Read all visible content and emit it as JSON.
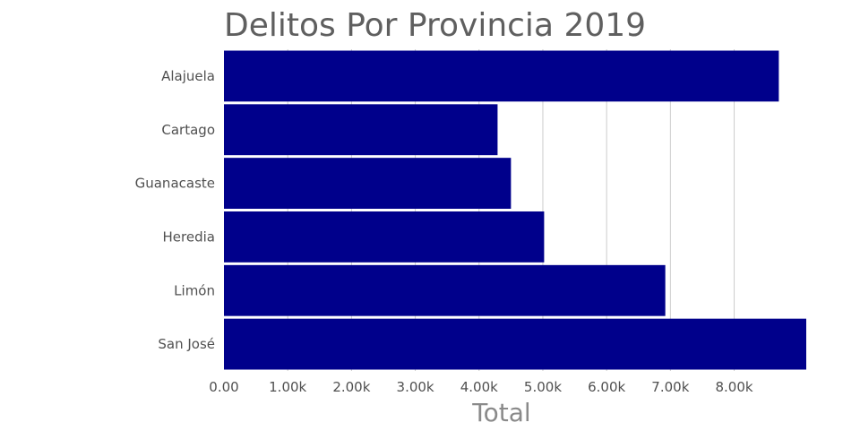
{
  "chart_data": {
    "type": "bar",
    "orientation": "horizontal",
    "title": "Delitos Por Provincia 2019",
    "xlabel": "Total",
    "ylabel": "",
    "categories": [
      "Alajuela",
      "Cartago",
      "Guanacaste",
      "Heredia",
      "Limón",
      "San José"
    ],
    "values": [
      8700,
      4290,
      4500,
      5020,
      6920,
      9130
    ],
    "xlim": [
      0,
      9130
    ],
    "xticks": [
      {
        "value": 0,
        "label": "0.00"
      },
      {
        "value": 1000,
        "label": "1.00k"
      },
      {
        "value": 2000,
        "label": "2.00k"
      },
      {
        "value": 3000,
        "label": "3.00k"
      },
      {
        "value": 4000,
        "label": "4.00k"
      },
      {
        "value": 5000,
        "label": "5.00k"
      },
      {
        "value": 6000,
        "label": "6.00k"
      },
      {
        "value": 7000,
        "label": "7.00k"
      },
      {
        "value": 8000,
        "label": "8.00k"
      }
    ],
    "grid": true,
    "legend": "none",
    "bar_color": "#00008b"
  }
}
